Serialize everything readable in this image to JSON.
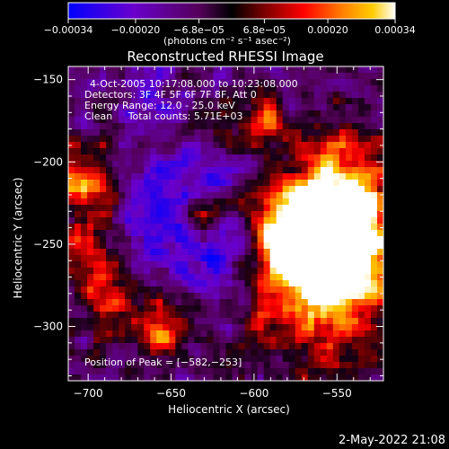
{
  "chart_data": {
    "type": "heatmap",
    "title": "Reconstructed RHESSI Image",
    "xlabel": "Heliocentric X (arcsec)",
    "ylabel": "Heliocentric Y (arcsec)",
    "xlim": [
      -712,
      -522
    ],
    "ylim": [
      -333,
      -142
    ],
    "xticks": [
      -700,
      -650,
      -600,
      -550
    ],
    "xtick_labels": [
      "−700",
      "−650",
      "−600",
      "−550"
    ],
    "yticks": [
      -150,
      -200,
      -250,
      -300
    ],
    "ytick_labels": [
      "−150",
      "−200",
      "−250",
      "−300"
    ],
    "annotations": [
      "4-Oct-2005 10:17:08.000 to 10:23:08.000",
      "Detectors: 3F 4F 5F 6F 7F 8F, Att 0",
      "Energy Range: 12.0 - 25.0 keV",
      "Clean     Total counts: 5.71E+03"
    ],
    "peak_label": "Position of Peak = [−582,−253]",
    "peak": [
      -582,
      -253
    ],
    "colorbar": {
      "range": [
        -0.00034,
        0.00034
      ],
      "tick_values": [
        -0.00034,
        -0.0002,
        -6.8e-05,
        6.8e-05,
        0.0002,
        0.00034
      ],
      "tick_labels": [
        "−0.00034",
        "−0.00020",
        "−6.8e−05",
        "6.8e−05",
        "0.00020",
        "0.00034"
      ],
      "units": "(photons cm⁻² s⁻¹ asec⁻²)",
      "colors": [
        "#0000ff",
        "#6a00cc",
        "#55005a",
        "#000000",
        "#7a0000",
        "#ff0000",
        "#ff8000",
        "#ffcc00",
        "#ffffff"
      ]
    },
    "grid": "off"
  },
  "timestamp": "2-May-2022 21:08"
}
